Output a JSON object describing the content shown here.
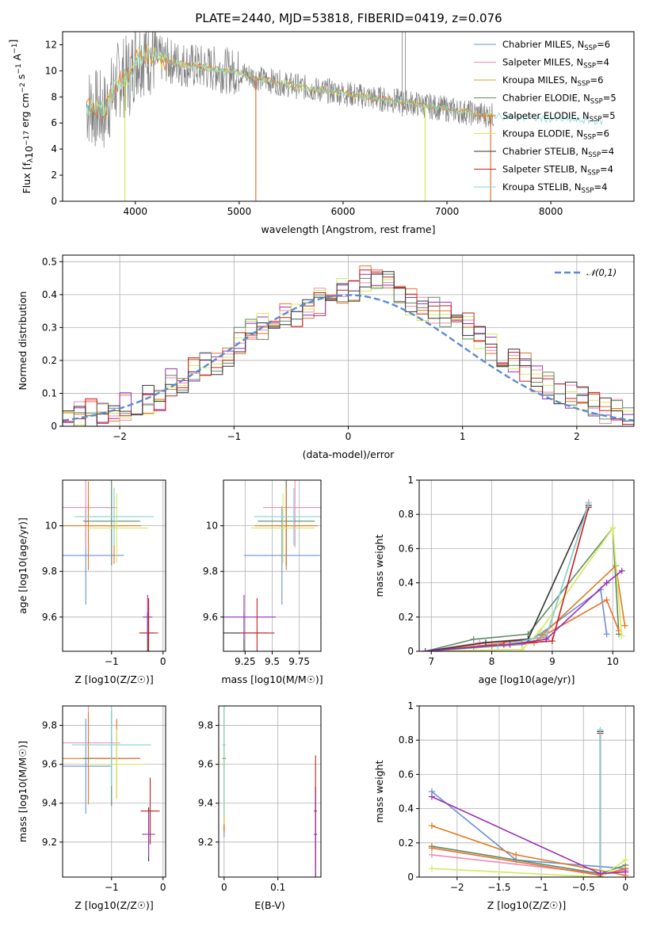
{
  "title": "PLATE=2440, MJD=53818, FIBERID=0419, z=0.076",
  "colors": [
    "#6b8fd8",
    "#f08ab4",
    "#e07b1f",
    "#5e8a66",
    "#e6732a",
    "#d4ea5a",
    "#333333",
    "#c81e1e",
    "#7fd6d6",
    "#9a2fb4"
  ],
  "legend": [
    {
      "pre": "Chabrier MILES, N",
      "sub": "SSP",
      "post": "=6",
      "color": "#6b8fd8"
    },
    {
      "pre": "Salpeter MILES, N",
      "sub": "SSP",
      "post": "=4",
      "color": "#f08ab4"
    },
    {
      "pre": "Kroupa MILES, N",
      "sub": "SSP",
      "post": "=6",
      "color": "#d9a11a"
    },
    {
      "pre": "Chabrier ELODIE, N",
      "sub": "SSP",
      "post": "=5",
      "color": "#5e8a66"
    },
    {
      "pre": "Salpeter ELODIE, N",
      "sub": "SSP",
      "post": "=5",
      "color": "#e6732a"
    },
    {
      "pre": "Kroupa ELODIE, N",
      "sub": "SSP",
      "post": "=6",
      "color": "#d4ea5a"
    },
    {
      "pre": "Chabrier STELIB, N",
      "sub": "SSP",
      "post": "=4",
      "color": "#333333"
    },
    {
      "pre": "Salpeter STELIB, N",
      "sub": "SSP",
      "post": "=4",
      "color": "#c81e1e"
    },
    {
      "pre": "Kroupa STELIB, N",
      "sub": "SSP",
      "post": "=4",
      "color": "#7fd6d6"
    }
  ],
  "hist_legend": "𝒩(0,1)",
  "chart_data": [
    {
      "type": "line",
      "name": "spectrum",
      "xlabel": "wavelength [Angstrom, rest frame]",
      "ylabel": "Flux [f_λ10^-17 erg cm^-2 s^-1 A^-1]",
      "xlim": [
        3300,
        8800
      ],
      "ylim": [
        0,
        13
      ],
      "xticks": [
        4000,
        5000,
        6000,
        7000,
        8000
      ],
      "yticks": [
        0,
        2,
        4,
        6,
        8,
        10,
        12
      ],
      "x": [
        3550,
        3700,
        3850,
        3950,
        4000,
        4100,
        4200,
        4400,
        4600,
        4800,
        5000,
        5200,
        5500,
        5800,
        6000,
        6300,
        6600,
        6900,
        7200,
        7400,
        7700,
        8000,
        8300,
        8500
      ],
      "y": [
        7.3,
        6.8,
        9.5,
        9.6,
        11.0,
        11.3,
        11.0,
        10.6,
        10.3,
        10.1,
        9.9,
        9.4,
        8.9,
        8.5,
        8.3,
        7.9,
        7.6,
        7.2,
        6.8,
        6.6,
        6.4,
        6.3,
        6.2,
        6.1
      ]
    },
    {
      "type": "bar",
      "name": "residual histogram",
      "xlabel": "(data-model)/error",
      "ylabel": "Normed distribution",
      "xlim": [
        -2.5,
        2.5
      ],
      "ylim": [
        0,
        0.52
      ],
      "xticks": [
        -2,
        -1,
        0,
        1,
        2
      ],
      "yticks": [
        0,
        0.1,
        0.2,
        0.3,
        0.4,
        0.5
      ],
      "bin_width": 0.1,
      "values": [
        0.02,
        0.03,
        0.04,
        0.04,
        0.05,
        0.06,
        0.06,
        0.08,
        0.09,
        0.13,
        0.12,
        0.17,
        0.19,
        0.2,
        0.22,
        0.26,
        0.28,
        0.3,
        0.31,
        0.33,
        0.34,
        0.36,
        0.38,
        0.4,
        0.41,
        0.42,
        0.45,
        0.44,
        0.43,
        0.4,
        0.38,
        0.36,
        0.35,
        0.34,
        0.31,
        0.3,
        0.27,
        0.24,
        0.22,
        0.19,
        0.18,
        0.15,
        0.12,
        0.11,
        0.09,
        0.08,
        0.06,
        0.05,
        0.04,
        0.03
      ]
    },
    {
      "type": "scatter",
      "name": "age vs Z",
      "xlabel": "Z [log10(Z/Z☉)]",
      "ylabel": "age  [log10(age/yr)]",
      "xlim": [
        -1.95,
        0.05
      ],
      "ylim": [
        9.45,
        10.2
      ],
      "xticks": [
        -1,
        0
      ],
      "yticks": [
        9.6,
        9.8,
        10.0
      ],
      "points": [
        [
          -1.5,
          9.87
        ],
        [
          -1.5,
          10.08
        ],
        [
          -1.45,
          10.0
        ],
        [
          -1.0,
          10.02
        ],
        [
          -0.95,
          10.0
        ],
        [
          -0.9,
          9.99
        ],
        [
          -0.3,
          9.53
        ],
        [
          -0.28,
          9.53
        ],
        [
          -0.95,
          10.04
        ],
        [
          -0.3,
          9.6
        ]
      ]
    },
    {
      "type": "scatter",
      "name": "age vs mass",
      "xlabel": "mass [log10(M/M☉)]",
      "ylabel": "",
      "xlim": [
        9.05,
        9.95
      ],
      "ylim": [
        9.45,
        10.2
      ],
      "xticks": [
        9.25,
        9.5,
        9.75
      ],
      "yticks": [
        9.6,
        9.8,
        10.0
      ],
      "points": [
        [
          9.59,
          9.87
        ],
        [
          9.71,
          10.08
        ],
        [
          9.63,
          10.0
        ],
        [
          9.63,
          10.02
        ],
        [
          9.63,
          10.0
        ],
        [
          9.6,
          9.99
        ],
        [
          9.24,
          9.53
        ],
        [
          9.36,
          9.53
        ],
        [
          9.7,
          10.04
        ],
        [
          9.24,
          9.6
        ]
      ]
    },
    {
      "type": "line",
      "name": "mass weight vs age",
      "xlabel": "age  [log10(age/yr)]",
      "ylabel": "mass weight",
      "xlim": [
        6.8,
        10.35
      ],
      "ylim": [
        0,
        1
      ],
      "xticks": [
        7,
        8,
        9,
        10
      ],
      "yticks": [
        0,
        0.2,
        0.4,
        0.6,
        0.8,
        1.0
      ],
      "series": [
        {
          "x": [
            6.9,
            7.7,
            8.5,
            8.8,
            9.8,
            9.9
          ],
          "y": [
            0.0,
            0.02,
            0.04,
            0.1,
            0.36,
            0.1
          ]
        },
        {
          "x": [
            6.9,
            7.8,
            8.9,
            9.6
          ],
          "y": [
            0.0,
            0.05,
            0.08,
            0.87
          ]
        },
        {
          "x": [
            6.9,
            8.0,
            8.7,
            10.05,
            10.2
          ],
          "y": [
            0.0,
            0.03,
            0.05,
            0.5,
            0.15
          ]
        },
        {
          "x": [
            6.9,
            7.7,
            8.6,
            10.0,
            10.1
          ],
          "y": [
            0.0,
            0.07,
            0.1,
            0.72,
            0.1
          ]
        },
        {
          "x": [
            6.9,
            8.0,
            8.8,
            9.9,
            10.1
          ],
          "y": [
            0.0,
            0.04,
            0.08,
            0.3,
            0.12
          ]
        },
        {
          "x": [
            6.9,
            8.5,
            8.8,
            10.0,
            10.15
          ],
          "y": [
            0.0,
            0.01,
            0.12,
            0.72,
            0.09
          ]
        },
        {
          "x": [
            6.9,
            7.9,
            8.6,
            9.6
          ],
          "y": [
            0.0,
            0.05,
            0.07,
            0.85
          ]
        },
        {
          "x": [
            6.9,
            8.2,
            9.0,
            9.6
          ],
          "y": [
            0.0,
            0.04,
            0.06,
            0.84
          ]
        },
        {
          "x": [
            6.9,
            8.1,
            8.9,
            9.6
          ],
          "y": [
            0.0,
            0.03,
            0.09,
            0.86
          ]
        },
        {
          "x": [
            6.9,
            8.3,
            8.9,
            9.9,
            10.15
          ],
          "y": [
            0.0,
            0.04,
            0.07,
            0.4,
            0.47
          ]
        }
      ]
    },
    {
      "type": "scatter",
      "name": "mass vs Z",
      "xlabel": "Z [log10(Z/Z☉)]",
      "ylabel": "mass [log10(M/M☉)]",
      "xlim": [
        -1.95,
        0.05
      ],
      "ylim": [
        9.02,
        9.9
      ],
      "xticks": [
        -1,
        0
      ],
      "yticks": [
        9.2,
        9.4,
        9.6,
        9.8
      ],
      "points": [
        [
          -1.5,
          9.59
        ],
        [
          -1.45,
          9.71
        ],
        [
          -1.45,
          9.63
        ],
        [
          -1.0,
          9.63
        ],
        [
          -0.9,
          9.63
        ],
        [
          -0.9,
          9.6
        ],
        [
          -0.28,
          9.24
        ],
        [
          -0.25,
          9.36
        ],
        [
          -1.0,
          9.7
        ],
        [
          -0.28,
          9.24
        ]
      ]
    },
    {
      "type": "scatter",
      "name": "mass vs E(B-V)",
      "xlabel": "E(B-V)",
      "ylabel": "",
      "xlim": [
        -0.01,
        0.18
      ],
      "ylim": [
        9.02,
        9.9
      ],
      "xticks": [
        0.0,
        0.1
      ],
      "yticks": [
        9.2,
        9.4,
        9.6,
        9.8
      ],
      "points": [
        [
          0.0,
          9.6
        ],
        [
          0.0,
          9.7
        ],
        [
          0.0,
          9.63
        ],
        [
          0.0,
          9.63
        ],
        [
          0.0,
          9.6
        ],
        [
          0.0,
          9.6
        ],
        [
          0.17,
          9.24
        ],
        [
          0.17,
          9.36
        ],
        [
          0.0,
          9.7
        ],
        [
          0.17,
          9.24
        ]
      ]
    },
    {
      "type": "line",
      "name": "mass weight vs Z",
      "xlabel": "Z [log10(Z/Z☉)]",
      "ylabel": "mass weight",
      "xlim": [
        -2.45,
        0.1
      ],
      "ylim": [
        0,
        1
      ],
      "xticks": [
        -2.0,
        -1.5,
        -1.0,
        -0.5,
        0.0
      ],
      "yticks": [
        0,
        0.2,
        0.4,
        0.6,
        0.8,
        1.0
      ],
      "series": [
        {
          "x": [
            -2.3,
            -1.3,
            0.0
          ],
          "y": [
            0.5,
            0.1,
            0.05
          ]
        },
        {
          "x": [
            -2.3,
            -0.3,
            0.0
          ],
          "y": [
            0.13,
            0.02,
            0.04
          ]
        },
        {
          "x": [
            -2.3,
            -1.3,
            0.0
          ],
          "y": [
            0.3,
            0.13,
            0.01
          ]
        },
        {
          "x": [
            -2.3,
            -0.3,
            0.0
          ],
          "y": [
            0.18,
            0.02,
            0.07
          ]
        },
        {
          "x": [
            -2.3,
            -0.3,
            0.0
          ],
          "y": [
            0.17,
            0.01,
            0.05
          ]
        },
        {
          "x": [
            -2.3,
            -0.3,
            0.0
          ],
          "y": [
            0.05,
            0.0,
            0.1
          ]
        },
        {
          "x": [
            -0.3,
            -0.3
          ],
          "y": [
            0.0,
            0.85
          ]
        },
        {
          "x": [
            -0.3,
            -0.3
          ],
          "y": [
            0.0,
            0.84
          ]
        },
        {
          "x": [
            -0.3,
            -0.3
          ],
          "y": [
            0.0,
            0.86
          ]
        },
        {
          "x": [
            -2.3,
            -0.3,
            0.0
          ],
          "y": [
            0.47,
            0.02,
            0.03
          ]
        }
      ]
    }
  ]
}
